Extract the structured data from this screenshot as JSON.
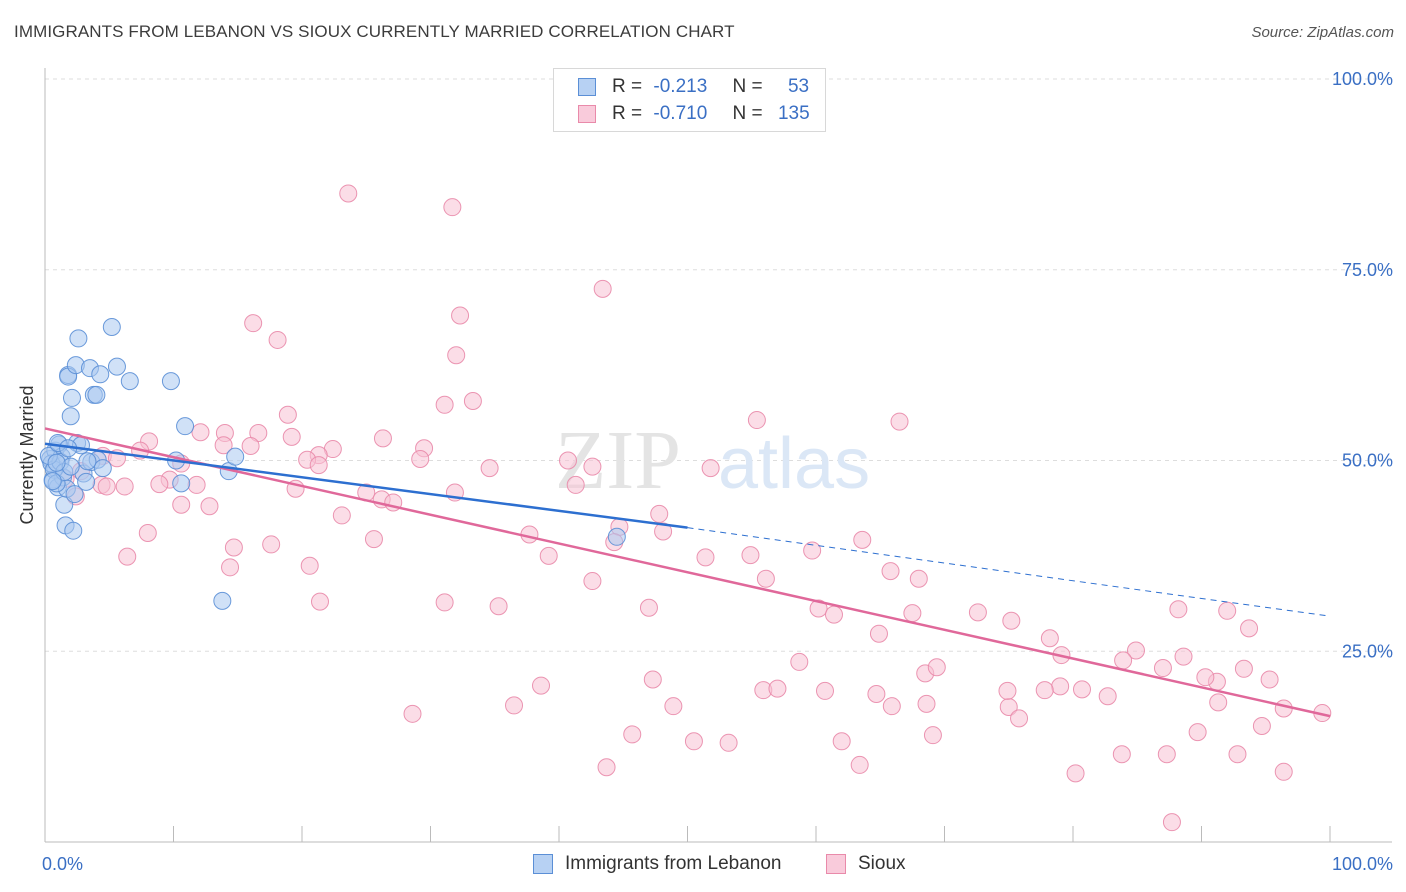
{
  "title": "IMMIGRANTS FROM LEBANON VS SIOUX CURRENTLY MARRIED CORRELATION CHART",
  "source": "Source: ZipAtlas.com",
  "watermark": {
    "zip": "ZIP",
    "atlas": "atlas"
  },
  "legend": [
    {
      "r_label": "R =",
      "r_value": "-0.213",
      "n_label": "N =",
      "n_value": "53"
    },
    {
      "r_label": "R =",
      "r_value": "-0.710",
      "n_label": "N =",
      "n_value": "135"
    }
  ],
  "colors": {
    "blue_fill": "#a9c8f0",
    "blue_stroke": "#5b8fd6",
    "blue_line": "#2d6fd0",
    "pink_fill": "#f7c1d3",
    "pink_stroke": "#e98aaa",
    "pink_line": "#e0689a",
    "axis_label": "#3a6fc4",
    "grid": "#dddddd"
  },
  "chart_data": {
    "type": "scatter",
    "title": "IMMIGRANTS FROM LEBANON VS SIOUX CURRENTLY MARRIED CORRELATION CHART",
    "xlabel": "",
    "ylabel": "Currently Married",
    "xlim": [
      0,
      100
    ],
    "ylim": [
      0,
      100
    ],
    "x_tick_labels": [
      "0.0%",
      "100.0%"
    ],
    "y_tick_labels": [
      {
        "value": 100,
        "label": "100.0%"
      },
      {
        "value": 75,
        "label": "75.0%"
      },
      {
        "value": 50,
        "label": "50.0%"
      },
      {
        "value": 25,
        "label": "25.0%"
      }
    ],
    "series": [
      {
        "name": "Immigrants from Lebanon",
        "color": "blue",
        "r": -0.213,
        "n": 53,
        "trend": {
          "x0": 0,
          "y0": 52.2,
          "x1": 50,
          "y1": 41.2,
          "dash_x1": 100,
          "dash_y1": 29.6
        },
        "points": [
          [
            0.4,
            50.2
          ],
          [
            0.6,
            47.5
          ],
          [
            0.8,
            51.3
          ],
          [
            0.8,
            49.0
          ],
          [
            1.0,
            46.5
          ],
          [
            1.1,
            52.1
          ],
          [
            1.3,
            50.5
          ],
          [
            1.4,
            47.8
          ],
          [
            1.5,
            44.2
          ],
          [
            1.6,
            41.5
          ],
          [
            1.7,
            46.3
          ],
          [
            1.8,
            61.2
          ],
          [
            1.8,
            61.0
          ],
          [
            2.0,
            55.8
          ],
          [
            2.1,
            58.2
          ],
          [
            2.2,
            40.8
          ],
          [
            2.3,
            45.6
          ],
          [
            2.4,
            62.5
          ],
          [
            2.5,
            52.3
          ],
          [
            2.6,
            66.0
          ],
          [
            2.8,
            52.0
          ],
          [
            3.0,
            48.3
          ],
          [
            3.2,
            47.2
          ],
          [
            3.5,
            62.1
          ],
          [
            3.6,
            49.8
          ],
          [
            3.8,
            58.6
          ],
          [
            4.0,
            58.6
          ],
          [
            4.1,
            50.1
          ],
          [
            4.3,
            61.3
          ],
          [
            4.5,
            49.0
          ],
          [
            5.2,
            67.5
          ],
          [
            5.6,
            62.3
          ],
          [
            6.6,
            60.4
          ],
          [
            9.8,
            60.4
          ],
          [
            10.2,
            50.0
          ],
          [
            10.6,
            47.0
          ],
          [
            10.9,
            54.5
          ],
          [
            13.8,
            31.6
          ],
          [
            14.3,
            48.6
          ],
          [
            14.8,
            50.5
          ],
          [
            0.5,
            49.6
          ],
          [
            0.7,
            48.8
          ],
          [
            0.9,
            47.0
          ],
          [
            1.2,
            49.8
          ],
          [
            1.5,
            48.5
          ],
          [
            2.0,
            49.2
          ],
          [
            0.3,
            50.6
          ],
          [
            1.0,
            52.3
          ],
          [
            0.6,
            47.3
          ],
          [
            1.8,
            51.6
          ],
          [
            3.3,
            49.9
          ],
          [
            44.5,
            40.0
          ],
          [
            0.9,
            49.7
          ]
        ]
      },
      {
        "name": "Sioux",
        "color": "pink",
        "r": -0.71,
        "n": 135,
        "trend": {
          "x0": 0,
          "y0": 54.2,
          "x1": 100,
          "y1": 16.5
        },
        "points": [
          [
            23.6,
            85.0
          ],
          [
            31.7,
            83.2
          ],
          [
            43.4,
            72.5
          ],
          [
            32.3,
            69.0
          ],
          [
            16.2,
            68.0
          ],
          [
            18.1,
            65.8
          ],
          [
            32.0,
            63.8
          ],
          [
            33.3,
            57.8
          ],
          [
            31.1,
            57.3
          ],
          [
            55.4,
            55.3
          ],
          [
            66.5,
            55.1
          ],
          [
            18.9,
            56.0
          ],
          [
            16.6,
            53.6
          ],
          [
            14.0,
            53.6
          ],
          [
            12.1,
            53.7
          ],
          [
            19.2,
            53.1
          ],
          [
            26.3,
            52.9
          ],
          [
            8.1,
            52.5
          ],
          [
            13.9,
            52.0
          ],
          [
            16.0,
            51.9
          ],
          [
            29.5,
            51.6
          ],
          [
            22.4,
            51.5
          ],
          [
            4.5,
            50.6
          ],
          [
            21.3,
            50.7
          ],
          [
            29.2,
            50.2
          ],
          [
            20.4,
            50.1
          ],
          [
            40.7,
            50.0
          ],
          [
            10.6,
            49.6
          ],
          [
            7.4,
            51.3
          ],
          [
            21.3,
            49.4
          ],
          [
            42.6,
            49.2
          ],
          [
            51.8,
            49.0
          ],
          [
            1.6,
            47.6
          ],
          [
            2.8,
            48.6
          ],
          [
            5.6,
            50.3
          ],
          [
            9.7,
            47.5
          ],
          [
            8.9,
            46.9
          ],
          [
            2.4,
            45.3
          ],
          [
            4.4,
            46.8
          ],
          [
            11.8,
            46.8
          ],
          [
            6.2,
            46.6
          ],
          [
            19.5,
            46.3
          ],
          [
            4.8,
            46.6
          ],
          [
            25.0,
            45.8
          ],
          [
            31.9,
            45.8
          ],
          [
            41.3,
            46.8
          ],
          [
            26.2,
            44.9
          ],
          [
            27.1,
            44.5
          ],
          [
            10.6,
            44.2
          ],
          [
            12.8,
            44.0
          ],
          [
            34.6,
            49.0
          ],
          [
            23.1,
            42.8
          ],
          [
            47.8,
            43.0
          ],
          [
            44.7,
            41.3
          ],
          [
            37.7,
            40.3
          ],
          [
            48.1,
            40.7
          ],
          [
            8.0,
            40.5
          ],
          [
            25.6,
            39.7
          ],
          [
            44.3,
            39.3
          ],
          [
            63.6,
            39.6
          ],
          [
            17.6,
            39.0
          ],
          [
            14.7,
            38.6
          ],
          [
            59.7,
            38.2
          ],
          [
            6.4,
            37.4
          ],
          [
            39.2,
            37.5
          ],
          [
            51.4,
            37.3
          ],
          [
            54.9,
            37.6
          ],
          [
            20.6,
            36.2
          ],
          [
            14.4,
            36.0
          ],
          [
            65.8,
            35.5
          ],
          [
            42.6,
            34.2
          ],
          [
            56.1,
            34.5
          ],
          [
            31.1,
            31.4
          ],
          [
            21.4,
            31.5
          ],
          [
            68.0,
            34.5
          ],
          [
            47.0,
            30.7
          ],
          [
            35.3,
            30.9
          ],
          [
            60.2,
            30.6
          ],
          [
            61.4,
            29.8
          ],
          [
            67.5,
            30.0
          ],
          [
            72.6,
            30.1
          ],
          [
            75.2,
            29.0
          ],
          [
            88.2,
            30.5
          ],
          [
            92.0,
            30.3
          ],
          [
            64.9,
            27.3
          ],
          [
            78.2,
            26.7
          ],
          [
            84.9,
            25.1
          ],
          [
            88.6,
            24.3
          ],
          [
            93.7,
            28.0
          ],
          [
            83.9,
            23.8
          ],
          [
            79.1,
            24.5
          ],
          [
            87.0,
            22.8
          ],
          [
            93.3,
            22.7
          ],
          [
            95.3,
            21.3
          ],
          [
            68.5,
            22.1
          ],
          [
            69.4,
            22.9
          ],
          [
            79.0,
            20.4
          ],
          [
            77.8,
            19.9
          ],
          [
            80.7,
            20.0
          ],
          [
            82.7,
            19.1
          ],
          [
            91.2,
            21.0
          ],
          [
            90.3,
            21.6
          ],
          [
            47.3,
            21.3
          ],
          [
            38.6,
            20.5
          ],
          [
            55.9,
            19.9
          ],
          [
            57.0,
            20.1
          ],
          [
            60.7,
            19.8
          ],
          [
            68.6,
            18.1
          ],
          [
            75.0,
            17.7
          ],
          [
            65.9,
            17.8
          ],
          [
            58.7,
            23.6
          ],
          [
            75.8,
            16.2
          ],
          [
            96.4,
            17.5
          ],
          [
            99.4,
            16.9
          ],
          [
            91.3,
            18.3
          ],
          [
            89.7,
            14.4
          ],
          [
            94.7,
            15.2
          ],
          [
            28.6,
            16.8
          ],
          [
            36.5,
            17.9
          ],
          [
            48.9,
            17.8
          ],
          [
            45.7,
            14.1
          ],
          [
            50.5,
            13.2
          ],
          [
            62.0,
            13.2
          ],
          [
            80.2,
            9.0
          ],
          [
            63.4,
            10.1
          ],
          [
            87.3,
            11.5
          ],
          [
            83.8,
            11.5
          ],
          [
            43.7,
            9.8
          ],
          [
            96.4,
            9.2
          ],
          [
            92.8,
            11.5
          ],
          [
            87.7,
            2.6
          ],
          [
            69.1,
            14.0
          ],
          [
            74.9,
            19.8
          ],
          [
            64.7,
            19.4
          ],
          [
            53.2,
            13.0
          ]
        ]
      }
    ]
  },
  "bottom_legend": [
    "Immigrants from Lebanon",
    "Sioux"
  ]
}
